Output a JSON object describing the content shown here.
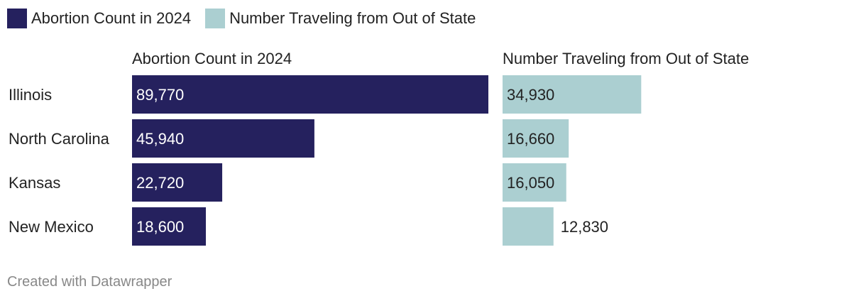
{
  "legend": [
    {
      "label": "Abortion Count in 2024",
      "color": "#25215e"
    },
    {
      "label": "Number Traveling from Out of State",
      "color": "#abcfd1"
    }
  ],
  "chart_data": {
    "type": "bar",
    "orientation": "horizontal",
    "categories": [
      "Illinois",
      "North Carolina",
      "Kansas",
      "New Mexico"
    ],
    "series": [
      {
        "name": "Abortion Count in 2024",
        "values": [
          89770,
          45940,
          22720,
          18600
        ],
        "labels": [
          "89,770",
          "45,940",
          "22,720",
          "18,600"
        ],
        "color": "#25215e"
      },
      {
        "name": "Number Traveling from Out of State",
        "values": [
          34930,
          16660,
          16050,
          12830
        ],
        "labels": [
          "34,930",
          "16,660",
          "16,050",
          "12,830"
        ],
        "color": "#abcfd1"
      }
    ],
    "xlim": [
      0,
      89770
    ],
    "grid": false,
    "legend_position": "top-left"
  },
  "footer": {
    "text": "Created with Datawrapper"
  }
}
